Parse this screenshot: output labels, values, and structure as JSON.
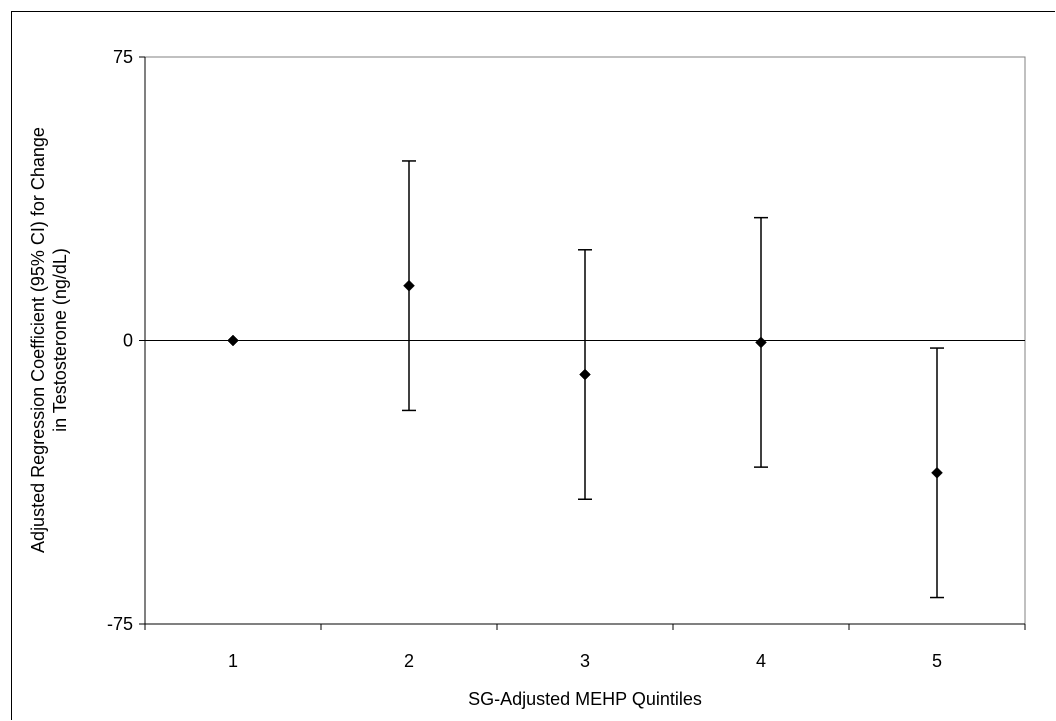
{
  "chart_data": {
    "type": "scatter",
    "title": "",
    "xlabel": "SG-Adjusted MEHP Quintiles",
    "ylabel_line1": "Adjusted Regression Coefficient (95% CI) for Change",
    "ylabel_line2": "in Testosterone (ng/dL)",
    "categories": [
      "1",
      "2",
      "3",
      "4",
      "5"
    ],
    "points": [
      {
        "x": "1",
        "y": 0,
        "lower": null,
        "upper": null
      },
      {
        "x": "2",
        "y": 14.5,
        "lower": -18.5,
        "upper": 47.5
      },
      {
        "x": "3",
        "y": -9,
        "lower": -42,
        "upper": 24
      },
      {
        "x": "4",
        "y": -0.5,
        "lower": -33.5,
        "upper": 32.5
      },
      {
        "x": "5",
        "y": -35,
        "lower": -68,
        "upper": -2
      }
    ],
    "ylim": [
      -75,
      75
    ],
    "yticks": [
      75,
      0,
      -75
    ],
    "reference_line": 0,
    "grid": false,
    "marker": "diamond",
    "color": "#000000"
  }
}
